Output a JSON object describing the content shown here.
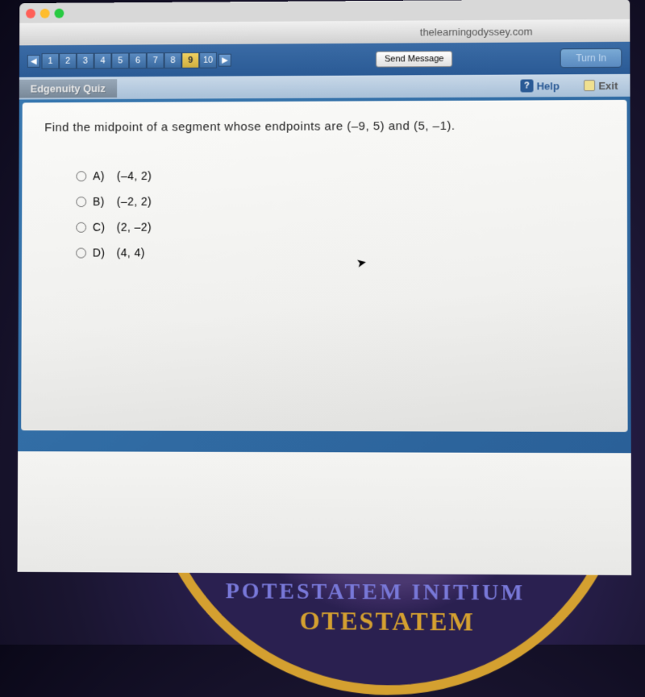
{
  "url": "thelearningodyssey.com",
  "toolbar": {
    "send_message": "Send Message",
    "turn_in": "Turn In"
  },
  "subbar": {
    "quiz_title": "Edgenuity Quiz",
    "help": "Help",
    "exit": "Exit"
  },
  "questions": {
    "items": [
      "1",
      "2",
      "3",
      "4",
      "5",
      "6",
      "7",
      "8",
      "9",
      "10"
    ],
    "current_index": 8
  },
  "question": {
    "text": "Find the midpoint of a segment whose endpoints are (–9, 5) and (5, –1)."
  },
  "answers": [
    {
      "label": "A)",
      "value": "(–4, 2)"
    },
    {
      "label": "B)",
      "value": "(–2, 2)"
    },
    {
      "label": "C)",
      "value": "(2, –2)"
    },
    {
      "label": "D)",
      "value": "(4, 4)"
    }
  ],
  "seal": {
    "text_top": "OTESTATEM",
    "text_bottom": "POTESTATEM INITIUM"
  },
  "colors": {
    "toolbar_bg": "#2a5a95",
    "content_bg": "#fafaf8",
    "accent": "#d4a030"
  }
}
